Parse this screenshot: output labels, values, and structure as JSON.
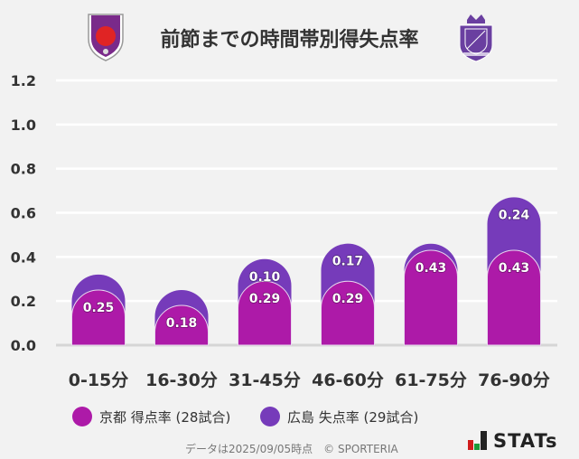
{
  "title": "前節までの時間帯別得失点率",
  "logos": {
    "left": "KYOTO SANGA",
    "right": "SANFRECCE HIROSHIMA"
  },
  "chart_data": {
    "type": "bar",
    "stacked": true,
    "categories": [
      "0-15分",
      "16-30分",
      "31-45分",
      "46-60分",
      "61-75分",
      "76-90分"
    ],
    "series": [
      {
        "name": "京都 得点率 (28試合)",
        "color": "#ad1aa8",
        "values": [
          0.25,
          0.18,
          0.29,
          0.29,
          0.43,
          0.43
        ],
        "labels": [
          "0.25",
          "0.18",
          "0.29",
          "0.29",
          "0.43",
          "0.43"
        ]
      },
      {
        "name": "広島 失点率 (29試合)",
        "color": "#763bba",
        "values": [
          0.07,
          0.07,
          0.1,
          0.17,
          0.03,
          0.24
        ],
        "labels": [
          "",
          "",
          "0.10",
          "0.17",
          "",
          "0.24"
        ]
      }
    ],
    "ylim": [
      0,
      1.2
    ],
    "yticks": [
      "0.0",
      "0.2",
      "0.4",
      "0.6",
      "0.8",
      "1.0",
      "1.2"
    ],
    "grid": true,
    "legend": "bottom"
  },
  "footer": {
    "note": "データは2025/09/05時点　© SPORTERIA",
    "brand": "STATs"
  }
}
